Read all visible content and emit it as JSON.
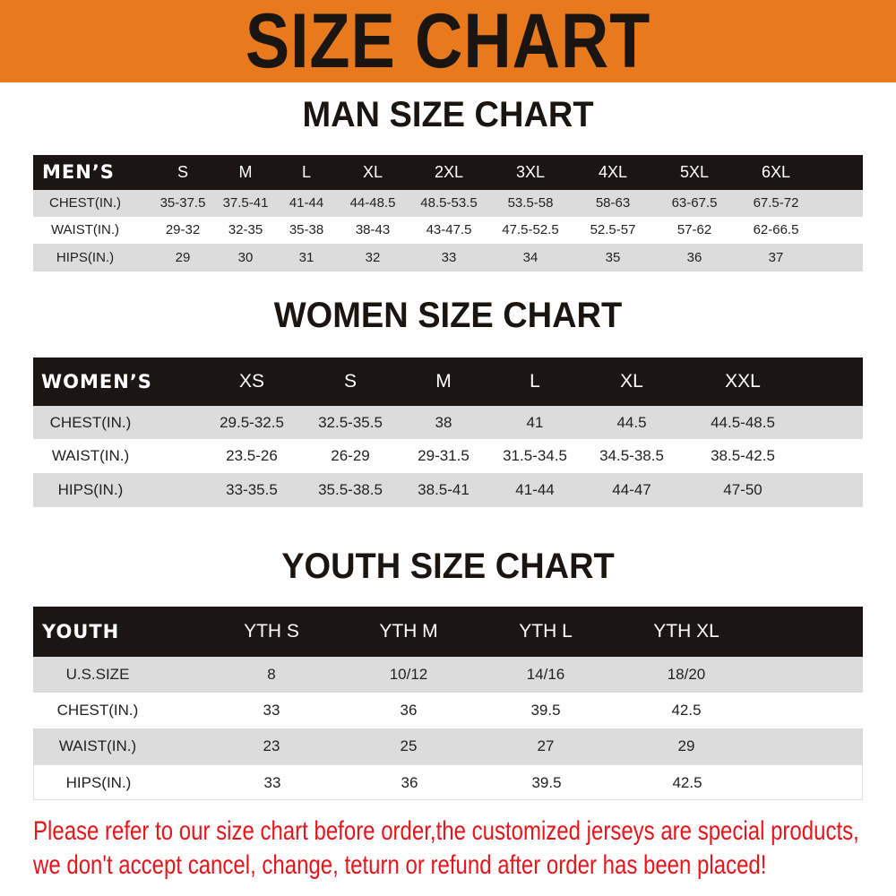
{
  "banner": {
    "title": "SIZE CHART",
    "color": "#e8791d"
  },
  "men": {
    "title": "MAN SIZE CHART",
    "header": [
      "MEN’S",
      "S",
      "M",
      "L",
      "XL",
      "2XL",
      "3XL",
      "4XL",
      "5XL",
      "6XL"
    ],
    "rows": [
      [
        "CHEST(IN.)",
        "35-37.5",
        "37.5-41",
        "41-44",
        "44-48.5",
        "48.5-53.5",
        "53.5-58",
        "58-63",
        "63-67.5",
        "67.5-72"
      ],
      [
        "WAIST(IN.)",
        "29-32",
        "32-35",
        "35-38",
        "38-43",
        "43-47.5",
        "47.5-52.5",
        "52.5-57",
        "57-62",
        "62-66.5"
      ],
      [
        "HIPS(IN.)",
        "29",
        "30",
        "31",
        "32",
        "33",
        "34",
        "35",
        "36",
        "37"
      ]
    ]
  },
  "women": {
    "title": "WOMEN SIZE CHART",
    "header": [
      "WOMEN’S",
      "XS",
      "S",
      "M",
      "L",
      "XL",
      "XXL"
    ],
    "rows": [
      [
        "CHEST(IN.)",
        "29.5-32.5",
        "32.5-35.5",
        "38",
        "41",
        "44.5",
        "44.5-48.5"
      ],
      [
        "WAIST(IN.)",
        "23.5-26",
        "26-29",
        "29-31.5",
        "31.5-34.5",
        "34.5-38.5",
        "38.5-42.5"
      ],
      [
        "HIPS(IN.)",
        "33-35.5",
        "35.5-38.5",
        "38.5-41",
        "41-44",
        "44-47",
        "47-50"
      ]
    ]
  },
  "youth": {
    "title": "YOUTH SIZE CHART",
    "header": [
      "YOUTH",
      "YTH S",
      "YTH M",
      "YTH L",
      "YTH XL"
    ],
    "rows": [
      [
        "U.S.SIZE",
        "8",
        "10/12",
        "14/16",
        "18/20"
      ],
      [
        "CHEST(IN.)",
        "33",
        "36",
        "39.5",
        "42.5"
      ],
      [
        "WAIST(IN.)",
        "23",
        "25",
        "27",
        "29"
      ],
      [
        "HIPS(IN.)",
        "33",
        "36",
        "39.5",
        "42.5"
      ]
    ]
  },
  "notice": {
    "line1": "Please refer to our size chart before order,the customized jerseys are special products,",
    "line2": "we don't accept cancel, change, teturn or refund after order has been placed!",
    "color": "#e8141b"
  }
}
